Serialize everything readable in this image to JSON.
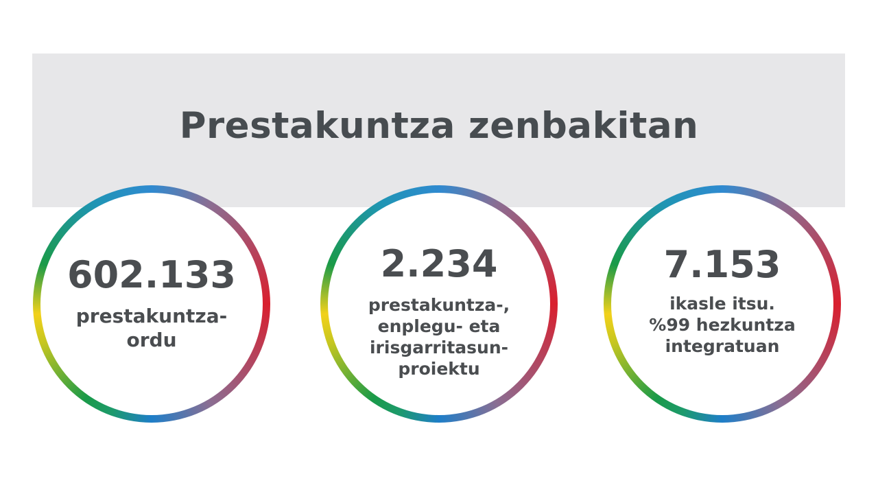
{
  "header": {
    "title": "Prestakuntza zenbakitan"
  },
  "stats": [
    {
      "number": "602.133",
      "label": "prestakuntza-\nordu"
    },
    {
      "number": "2.234",
      "label": "prestakuntza-,\nenplegu- eta\nirisgarritasun-\nproiektu"
    },
    {
      "number": "7.153",
      "label": "ikasle itsu.\n%99   hezkuntza\nintegratuan"
    }
  ],
  "colors": {
    "background": "#ffffff",
    "header_band": "#e7e7e9",
    "text": "#4a4d50",
    "ring_red": "#d91f2e",
    "ring_blue": "#2f8ad0",
    "ring_green": "#1a9a48",
    "ring_yellow": "#f2d11b"
  }
}
